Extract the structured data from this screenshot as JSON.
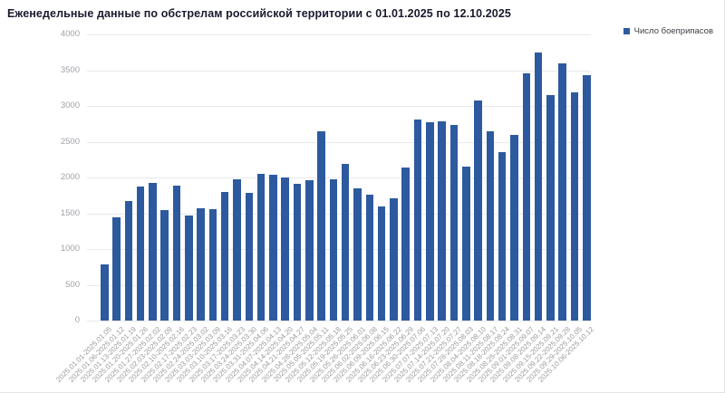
{
  "header": {
    "title": "Еженедельные данные по обстрелам российской территории с 01.01.2025 по 12.10.2025"
  },
  "legend": {
    "label": "Число боеприпасов"
  },
  "colors": {
    "bar": "#2d5a9e",
    "legend_marker": "#2d5a9e",
    "grid": "#e9e9ec",
    "axis_text": "#a2a2a8",
    "title_text": "#191a2e"
  },
  "chart_data": {
    "type": "bar",
    "title": "Еженедельные данные по обстрелам российской территории с 01.01.2025 по 12.10.2025",
    "series_name": "Число боеприпасов",
    "xlabel": "",
    "ylabel": "",
    "ylim": [
      0,
      4000
    ],
    "ytick_step": 500,
    "grid": true,
    "legend_position": "top-right",
    "categories": [
      "2025.01.01-2025.01.05",
      "2025.01.06-2025.01.12",
      "2025.01.13-2025.01.19",
      "2025.01.20-2025.01.26",
      "2025.01.27-2025.02.02",
      "2025.02.03-2025.02.09",
      "2025.02.10-2025.02.16",
      "2025.02.17-2025.02.23",
      "2025.02.24-2025.03.02",
      "2025.03.03-2025.03.09",
      "2025.03.10-2025.03.16",
      "2025.03.17-2025.03.23",
      "2025.03.24-2025.03.30",
      "2025.03.31-2025.04.06",
      "2025.04.07-2025.04.13",
      "2025.04.14-2025.04.20",
      "2025.04.21-2025.04.27",
      "2025.04.28-2025.05.04",
      "2025.05.05-2025.05.11",
      "2025.05.12-2025.05.18",
      "2025.05.19-2025.05.25",
      "2025.05.26-2025.06.01",
      "2025.06.02-2025.06.08",
      "2025.06.09-2025.06.15",
      "2025.06.16-2025.06.22",
      "2025.06.23-2025.06.29",
      "2025.06.30-2025.07.06",
      "2025.07.07-2025.07.13",
      "2025.07.14-2025.07.20",
      "2025.07.21-2025.07.27",
      "2025.07.28-2025.08.03",
      "2025.08.04-2025.08.10",
      "2025.08.11-2025.08.17",
      "2025.08.18-2025.08.24",
      "2025.08.25-2025.08.31",
      "2025.09.01-2025.09.07",
      "2025.09.08-2025.09.14",
      "2025.09.15-2025.09.21",
      "2025.09.22-2025.09.28",
      "2025.09.29-2025.10.05",
      "2025.10.06-2025.10.12"
    ],
    "values": [
      780,
      1440,
      1670,
      1880,
      1920,
      1550,
      1890,
      1470,
      1570,
      1560,
      1800,
      1970,
      1780,
      2050,
      2040,
      2000,
      1910,
      1960,
      2640,
      1980,
      2190,
      1850,
      1760,
      1600,
      1710,
      2140,
      2810,
      2770,
      2790,
      2730,
      2150,
      3080,
      2650,
      2350,
      2600,
      3450,
      3750,
      3150,
      3600,
      3190,
      3430
    ]
  }
}
